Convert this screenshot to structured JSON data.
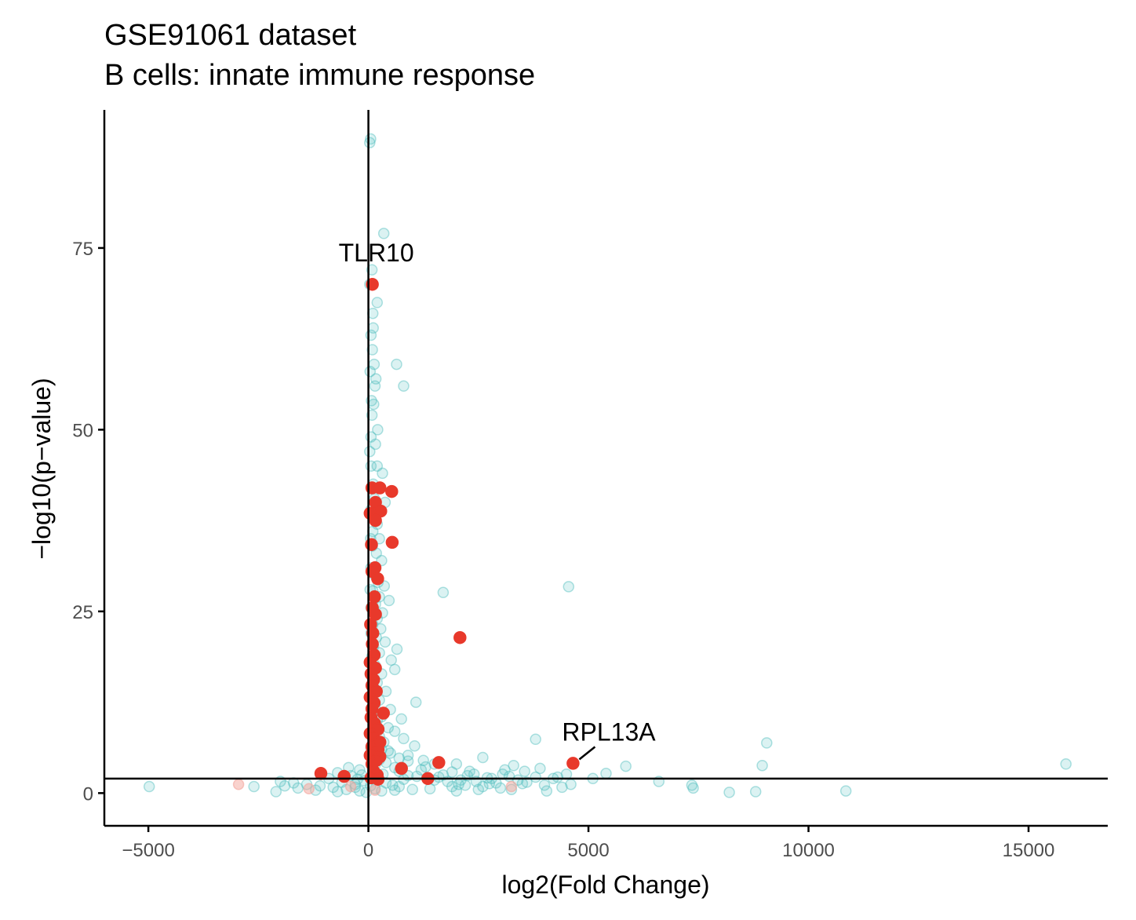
{
  "chart_data": {
    "type": "scatter",
    "title": "GSE91061 dataset",
    "subtitle": "B cells: innate immune response",
    "xlabel": "log2(Fold Change)",
    "ylabel": "−log10(p−value)",
    "xlim": [
      -6000,
      16800
    ],
    "ylim": [
      -4.5,
      94
    ],
    "x_ticks": [
      -5000,
      0,
      5000,
      10000,
      15000
    ],
    "x_tick_labels": [
      "−5000",
      "0",
      "5000",
      "10000",
      "15000"
    ],
    "y_ticks": [
      0,
      25,
      50,
      75
    ],
    "y_tick_labels": [
      "0",
      "25",
      "50",
      "75"
    ],
    "grid": false,
    "legend": "none",
    "reference_lines": {
      "vertical_x": 0,
      "horizontal_y": 2
    },
    "colors": {
      "background_genes": "#4dbdbd",
      "pathway_genes": "#e8392b",
      "pathway_genes_nonsig": "#f4a59c",
      "axis": "#000000"
    },
    "series": [
      {
        "role": "background",
        "points": [
          [
            50,
            90
          ],
          [
            30,
            89.5
          ],
          [
            350,
            77
          ],
          [
            200,
            67.5
          ],
          [
            100,
            66
          ],
          [
            60,
            63
          ],
          [
            90,
            61
          ],
          [
            130,
            59
          ],
          [
            640,
            59
          ],
          [
            800,
            56
          ],
          [
            150,
            56
          ],
          [
            70,
            54
          ],
          [
            120,
            53.5
          ],
          [
            80,
            52
          ],
          [
            60,
            49
          ],
          [
            160,
            48
          ],
          [
            30,
            47
          ],
          [
            60,
            45
          ],
          [
            200,
            45
          ],
          [
            320,
            44
          ],
          [
            110,
            42.5
          ],
          [
            260,
            42
          ],
          [
            140,
            40.5
          ],
          [
            380,
            40
          ],
          [
            60,
            39
          ],
          [
            130,
            38
          ],
          [
            200,
            37
          ],
          [
            100,
            36
          ],
          [
            250,
            35
          ],
          [
            90,
            34
          ],
          [
            180,
            33
          ],
          [
            300,
            32
          ],
          [
            60,
            31
          ],
          [
            140,
            30
          ],
          [
            220,
            29
          ],
          [
            360,
            28.5
          ],
          [
            100,
            27.8
          ],
          [
            250,
            27
          ],
          [
            470,
            26.5
          ],
          [
            160,
            26
          ],
          [
            60,
            25.5
          ],
          [
            320,
            24.8
          ],
          [
            200,
            24
          ],
          [
            100,
            23.2
          ],
          [
            280,
            22.6
          ],
          [
            60,
            22
          ],
          [
            180,
            21.4
          ],
          [
            380,
            20.8
          ],
          [
            120,
            20.2
          ],
          [
            650,
            19.8
          ],
          [
            250,
            19.3
          ],
          [
            80,
            18.8
          ],
          [
            520,
            18.3
          ],
          [
            150,
            17.6
          ],
          [
            600,
            17
          ],
          [
            300,
            16.4
          ],
          [
            90,
            15.8
          ],
          [
            200,
            15.2
          ],
          [
            120,
            14.6
          ],
          [
            400,
            14
          ],
          [
            60,
            13.4
          ],
          [
            250,
            12.8
          ],
          [
            1080,
            12.5
          ],
          [
            150,
            12
          ],
          [
            500,
            11.5
          ],
          [
            80,
            11
          ],
          [
            300,
            10.5
          ],
          [
            750,
            10.2
          ],
          [
            200,
            10
          ],
          [
            120,
            9.5
          ],
          [
            450,
            9
          ],
          [
            600,
            8.5
          ],
          [
            60,
            8
          ],
          [
            250,
            7.8
          ],
          [
            800,
            7.5
          ],
          [
            350,
            7
          ],
          [
            150,
            6.8
          ],
          [
            1050,
            6.5
          ],
          [
            60,
            6.2
          ],
          [
            300,
            6
          ],
          [
            500,
            5.5
          ],
          [
            900,
            5.2
          ],
          [
            200,
            5
          ],
          [
            700,
            4.8
          ],
          [
            1250,
            4.5
          ],
          [
            400,
            4.2
          ],
          [
            1500,
            4
          ],
          [
            150,
            3.8
          ],
          [
            600,
            3.5
          ],
          [
            1200,
            3.2
          ],
          [
            1900,
            2.9
          ],
          [
            2400,
            2.6
          ],
          [
            900,
            2.4
          ],
          [
            1600,
            2.2
          ],
          [
            2700,
            2.1
          ],
          [
            3200,
            2.3
          ],
          [
            3800,
            2.2
          ],
          [
            2100,
            1.8
          ],
          [
            4200,
            2
          ],
          [
            4500,
            2.6
          ],
          [
            1800,
            1.6
          ],
          [
            2900,
            1.4
          ],
          [
            3500,
            1.3
          ],
          [
            2200,
            1.1
          ],
          [
            2600,
            0.9
          ],
          [
            3000,
            0.7
          ],
          [
            1400,
            0.6
          ],
          [
            1000,
            0.5
          ],
          [
            600,
            0.4
          ],
          [
            300,
            0.3
          ],
          [
            -200,
            0.3
          ],
          [
            -500,
            0.5
          ],
          [
            -800,
            0.8
          ],
          [
            -1100,
            1
          ],
          [
            -1400,
            1.2
          ],
          [
            -1700,
            1.4
          ],
          [
            -2000,
            1.6
          ],
          [
            -1900,
            1
          ],
          [
            -1600,
            0.7
          ],
          [
            -2100,
            0.2
          ],
          [
            -2600,
            0.9
          ],
          [
            -4980,
            0.9
          ],
          [
            -300,
            1.2
          ],
          [
            -600,
            1.5
          ],
          [
            -900,
            2
          ],
          [
            -400,
            2.4
          ],
          [
            -200,
            3.2
          ],
          [
            -450,
            3.5
          ],
          [
            -700,
            2.8
          ],
          [
            -100,
            1.7
          ],
          [
            -300,
            0.8
          ],
          [
            1700,
            27.6
          ],
          [
            4550,
            28.4
          ],
          [
            3800,
            7.4
          ],
          [
            2600,
            4.9
          ],
          [
            2000,
            4
          ],
          [
            3100,
            3.2
          ],
          [
            3300,
            3.8
          ],
          [
            3900,
            3.4
          ],
          [
            4300,
            2.2
          ],
          [
            5400,
            2.7
          ],
          [
            5850,
            3.7
          ],
          [
            6600,
            1.6
          ],
          [
            7350,
            1.1
          ],
          [
            7380,
            0.7
          ],
          [
            8200,
            0.1
          ],
          [
            8800,
            0.2
          ],
          [
            8950,
            3.8
          ],
          [
            9050,
            6.9
          ],
          [
            10850,
            0.3
          ],
          [
            15850,
            4
          ],
          [
            4050,
            0.3
          ],
          [
            3250,
            0.5
          ],
          [
            2000,
            0.3
          ],
          [
            1500,
            1.8
          ],
          [
            800,
            1.9
          ],
          [
            1100,
            2.3
          ],
          [
            1700,
            2.5
          ],
          [
            2300,
            3
          ],
          [
            2800,
            2
          ],
          [
            3600,
            1.5
          ],
          [
            4600,
            1.2
          ],
          [
            5100,
            2
          ],
          [
            700,
            3
          ],
          [
            1300,
            3.6
          ],
          [
            900,
            4.4
          ],
          [
            450,
            5.8
          ],
          [
            250,
            4.6
          ],
          [
            100,
            2
          ],
          [
            50,
            1
          ],
          [
            150,
            0.6
          ],
          [
            400,
            1.4
          ],
          [
            -150,
            2.5
          ],
          [
            -250,
            1.9
          ],
          [
            -700,
            0.2
          ],
          [
            -1200,
            0.4
          ],
          [
            -50,
            0.1
          ],
          [
            2050,
            1.2
          ],
          [
            2500,
            0.5
          ],
          [
            3400,
            1.8
          ],
          [
            4000,
            1.1
          ],
          [
            4400,
            0.8
          ],
          [
            30,
            70
          ],
          [
            80,
            72
          ],
          [
            110,
            64
          ],
          [
            170,
            57
          ],
          [
            40,
            58
          ],
          [
            210,
            50
          ],
          [
            50,
            35
          ],
          [
            150,
            31
          ],
          [
            40,
            28
          ],
          [
            110,
            26.5
          ],
          [
            60,
            18
          ],
          [
            210,
            9
          ],
          [
            90,
            3.4
          ],
          [
            330,
            2.6
          ],
          [
            550,
            1.1
          ],
          [
            700,
            0.9
          ],
          [
            1900,
            0.9
          ],
          [
            2250,
            2.4
          ],
          [
            2450,
            1.6
          ],
          [
            2750,
            1.3
          ],
          [
            3050,
            2.6
          ],
          [
            3550,
            3
          ]
        ]
      },
      {
        "role": "pathway",
        "points": [
          [
            90,
            70
          ],
          [
            80,
            42
          ],
          [
            260,
            42
          ],
          [
            530,
            41.5
          ],
          [
            160,
            40
          ],
          [
            280,
            38.8
          ],
          [
            40,
            38.5
          ],
          [
            160,
            37.5
          ],
          [
            540,
            34.5
          ],
          [
            70,
            34.2
          ],
          [
            150,
            31
          ],
          [
            80,
            30.5
          ],
          [
            210,
            29.5
          ],
          [
            140,
            27
          ],
          [
            90,
            25.5
          ],
          [
            160,
            24.6
          ],
          [
            50,
            23.2
          ],
          [
            100,
            22
          ],
          [
            2080,
            21.4
          ],
          [
            90,
            20.5
          ],
          [
            130,
            19
          ],
          [
            40,
            18
          ],
          [
            160,
            17.2
          ],
          [
            60,
            16.4
          ],
          [
            120,
            15.6
          ],
          [
            80,
            14.8
          ],
          [
            180,
            14
          ],
          [
            40,
            13.2
          ],
          [
            130,
            12.4
          ],
          [
            80,
            11.6
          ],
          [
            340,
            11
          ],
          [
            60,
            10.4
          ],
          [
            140,
            9.6
          ],
          [
            220,
            8.8
          ],
          [
            40,
            8.2
          ],
          [
            120,
            7.6
          ],
          [
            260,
            7
          ],
          [
            80,
            6.4
          ],
          [
            220,
            6
          ],
          [
            140,
            5.6
          ],
          [
            40,
            5.2
          ],
          [
            260,
            5
          ],
          [
            180,
            4.5
          ],
          [
            80,
            4
          ],
          [
            1600,
            4.2
          ],
          [
            4650,
            4.1
          ],
          [
            750,
            3.4
          ],
          [
            120,
            3
          ],
          [
            200,
            2.5
          ],
          [
            -1080,
            2.7
          ],
          [
            -550,
            2.3
          ],
          [
            1350,
            2
          ],
          [
            60,
            2.1
          ],
          [
            220,
            1.9
          ]
        ]
      },
      {
        "role": "pathway_nonsig",
        "points": [
          [
            -2950,
            1.2
          ],
          [
            -1350,
            0.6
          ],
          [
            -400,
            0.9
          ],
          [
            3250,
            0.9
          ],
          [
            150,
            0.4
          ]
        ]
      }
    ],
    "annotations": [
      {
        "label": "TLR10",
        "x": 90,
        "y": 70
      },
      {
        "label": "RPL13A",
        "x": 4650,
        "y": 4.1
      }
    ]
  }
}
